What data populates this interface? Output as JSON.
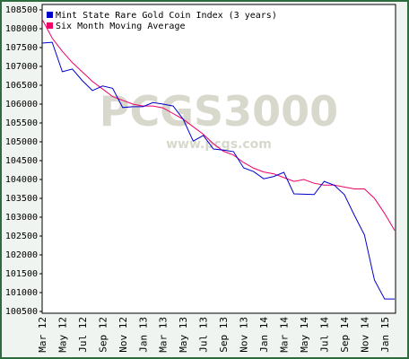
{
  "chart_data": {
    "type": "line",
    "watermark": "PCGS3000",
    "watermark_url": "www.pcgs.com",
    "categories": [
      "Mar 12",
      null,
      "May 12",
      null,
      "Jul 12",
      null,
      "Sep 12",
      null,
      "Nov 12",
      null,
      "Jan 13",
      null,
      "Mar 13",
      null,
      "May 13",
      null,
      "Jul 13",
      null,
      "Sep 13",
      null,
      "Nov 13",
      null,
      "Jan 14",
      null,
      "Mar 14",
      null,
      "May 14",
      null,
      "Jul 14",
      null,
      "Sep 14",
      null,
      "Nov 14",
      null,
      "Jan 15",
      null
    ],
    "series": [
      {
        "name": "Mint State Rare Gold Coin Index (3 years)",
        "color": "#0000cc",
        "values": [
          107620,
          107640,
          106860,
          106930,
          106620,
          106360,
          106480,
          106420,
          105910,
          105930,
          105930,
          106040,
          106000,
          105950,
          105600,
          105020,
          105170,
          104810,
          104780,
          104740,
          104310,
          104210,
          104020,
          104080,
          104190,
          103620,
          103610,
          103600,
          103950,
          103850,
          103600,
          103050,
          102530,
          101330,
          100830,
          100830
        ]
      },
      {
        "name": "Six Month Moving Average",
        "color": "#ee0066",
        "values": [
          108250,
          107750,
          107400,
          107100,
          106850,
          106600,
          106400,
          106200,
          106100,
          106000,
          105950,
          105950,
          105900,
          105750,
          105600,
          105400,
          105200,
          104950,
          104750,
          104650,
          104450,
          104300,
          104200,
          104150,
          104050,
          103950,
          104000,
          103900,
          103850,
          103850,
          103800,
          103750,
          103750,
          103500,
          103100,
          102650
        ]
      }
    ],
    "ylim": [
      100500,
      108500
    ],
    "yticks": [
      100500,
      101000,
      101500,
      102000,
      102500,
      103000,
      103500,
      104000,
      104500,
      105000,
      105500,
      106000,
      106500,
      107000,
      107500,
      108000,
      108500
    ]
  }
}
